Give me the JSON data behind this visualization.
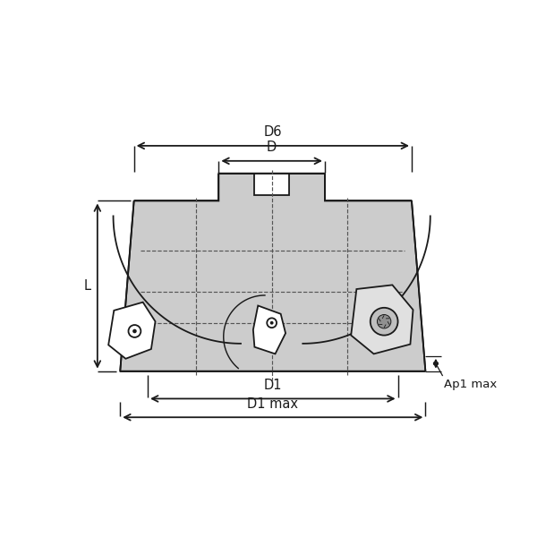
{
  "bg_color": "#ffffff",
  "line_color": "#1a1a1a",
  "fill_color": "#cccccc",
  "fill_color2": "#d4d4d4",
  "dashed_color": "#555555",
  "figsize": [
    6.0,
    6.0
  ],
  "dpi": 100,
  "labels": {
    "D6": "D6",
    "D": "D",
    "D1": "D1",
    "D1max": "D1 max",
    "L": "L",
    "Ap1max": "Ap1 max"
  },
  "font_size": 10.5
}
